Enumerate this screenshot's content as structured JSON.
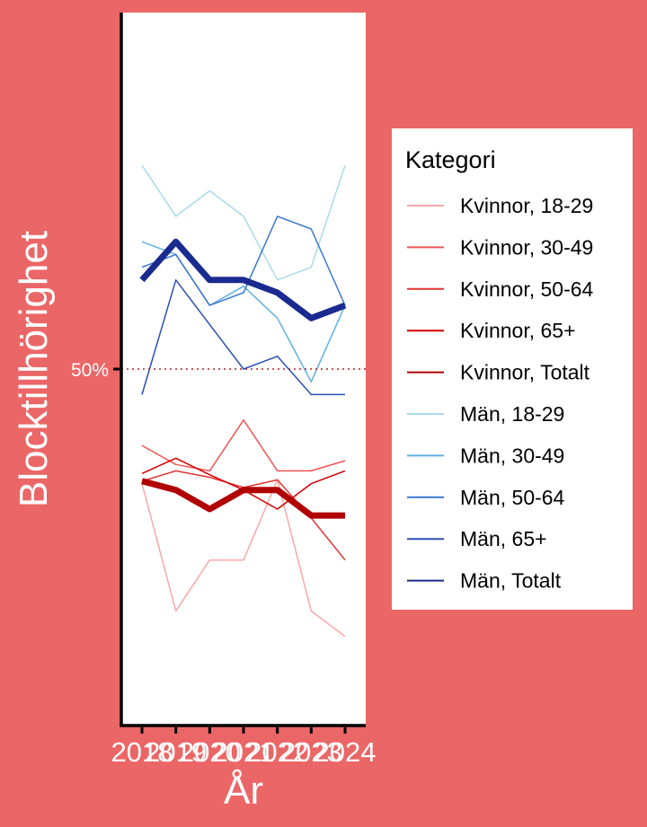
{
  "chart_data": {
    "type": "line",
    "title": "",
    "xlabel": "År",
    "ylabel": "Blocktillhörighet",
    "x": [
      2018,
      2019,
      2020,
      2021,
      2022,
      2023,
      2024
    ],
    "x_tick_labels": [
      "2018",
      "2019",
      "2020",
      "2021",
      "2022",
      "2023",
      "2024"
    ],
    "y_tick_labels": [
      "50%"
    ],
    "ylim": [
      0.22,
      0.78
    ],
    "reference_line": {
      "value": 0.5,
      "label": "50%",
      "style": "dotted",
      "color": "#B22222"
    },
    "grid": false,
    "legend": {
      "title": "Kategori",
      "position": "right"
    },
    "series": [
      {
        "name": "Kvinnor, 18-29",
        "color": "#F7A8A8",
        "width": 1.5,
        "values": [
          0.41,
          0.31,
          0.35,
          0.35,
          0.413,
          0.31,
          0.29
        ]
      },
      {
        "name": "Kvinnor, 30-49",
        "color": "#EF5555",
        "width": 1.5,
        "values": [
          0.44,
          0.425,
          0.42,
          0.46,
          0.42,
          0.42,
          0.428
        ]
      },
      {
        "name": "Kvinnor, 50-64",
        "color": "#E23434",
        "width": 1.5,
        "values": [
          0.412,
          0.42,
          0.415,
          0.407,
          0.413,
          0.383,
          0.35
        ]
      },
      {
        "name": "Kvinnor, 65+",
        "color": "#D40000",
        "width": 1.5,
        "values": [
          0.418,
          0.43,
          0.417,
          0.405,
          0.39,
          0.41,
          0.42
        ]
      },
      {
        "name": "Kvinnor, Totalt",
        "color": "#B00000",
        "width": 7,
        "values": [
          0.412,
          0.405,
          0.39,
          0.405,
          0.405,
          0.385,
          0.385
        ]
      },
      {
        "name": "Män, 18-29",
        "color": "#A8DBEA",
        "width": 1.5,
        "values": [
          0.66,
          0.62,
          0.64,
          0.62,
          0.57,
          0.58,
          0.66
        ]
      },
      {
        "name": "Män, 30-49",
        "color": "#5FB0E3",
        "width": 1.5,
        "values": [
          0.6,
          0.59,
          0.55,
          0.565,
          0.54,
          0.49,
          0.55
        ]
      },
      {
        "name": "Män, 50-64",
        "color": "#3A78CF",
        "width": 1.5,
        "values": [
          0.58,
          0.59,
          0.55,
          0.56,
          0.62,
          0.61,
          0.55
        ]
      },
      {
        "name": "Män, 65+",
        "color": "#2A4FB8",
        "width": 1.5,
        "values": [
          0.48,
          0.57,
          0.535,
          0.5,
          0.51,
          0.48,
          0.48
        ]
      },
      {
        "name": "Män, Totalt",
        "color": "#1A2A8E",
        "width": 7,
        "values": [
          0.57,
          0.6,
          0.57,
          0.57,
          0.56,
          0.54,
          0.55
        ]
      }
    ]
  }
}
